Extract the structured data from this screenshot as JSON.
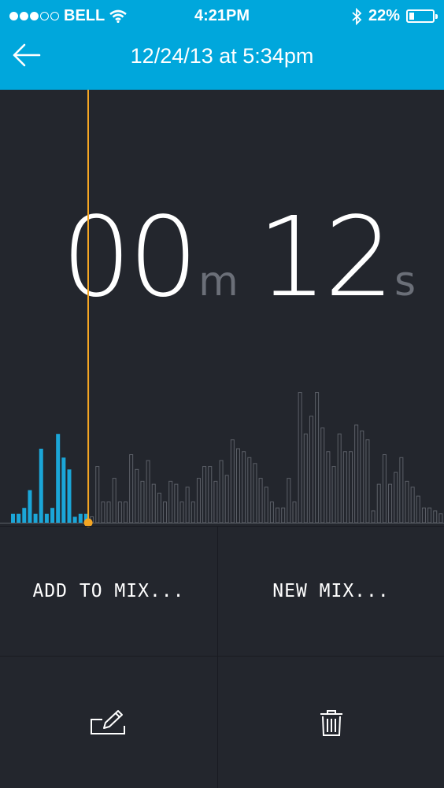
{
  "status_bar": {
    "carrier": "BELL",
    "time": "4:21PM",
    "battery": "22%",
    "battery_level": 0.22,
    "signal_bars_filled": 3,
    "signal_bars_total": 5,
    "icons": [
      "wifi-icon",
      "bluetooth-icon",
      "battery-icon"
    ]
  },
  "header": {
    "title": "12/24/13 at 5:34pm",
    "back_icon": "arrow-left-icon",
    "color": "#00a7dc"
  },
  "timer": {
    "minutes": "00",
    "minutes_unit": "m",
    "seconds": "12",
    "seconds_unit": "s"
  },
  "waveform": {
    "played_color": "#1ba6d8",
    "unplayed_color": "#5c6068",
    "playhead_color": "#f5a623",
    "played_count": 14,
    "levels": [
      0.06,
      0.06,
      0.1,
      0.22,
      0.06,
      0.5,
      0.06,
      0.1,
      0.6,
      0.44,
      0.36,
      0.04,
      0.06,
      0.06,
      0.04,
      0.38,
      0.14,
      0.14,
      0.3,
      0.14,
      0.14,
      0.46,
      0.36,
      0.28,
      0.42,
      0.26,
      0.2,
      0.14,
      0.28,
      0.26,
      0.14,
      0.24,
      0.14,
      0.3,
      0.38,
      0.38,
      0.28,
      0.42,
      0.32,
      0.56,
      0.5,
      0.48,
      0.44,
      0.4,
      0.3,
      0.24,
      0.14,
      0.1,
      0.1,
      0.3,
      0.14,
      0.88,
      0.6,
      0.72,
      0.88,
      0.64,
      0.48,
      0.38,
      0.6,
      0.48,
      0.48,
      0.66,
      0.62,
      0.56,
      0.08,
      0.26,
      0.46,
      0.26,
      0.34,
      0.44,
      0.28,
      0.24,
      0.18,
      0.1,
      0.1,
      0.08,
      0.06
    ],
    "total_bars": 77
  },
  "actions": {
    "add_to_mix": "ADD TO MIX...",
    "new_mix": "NEW MIX...",
    "edit_icon": "edit-icon",
    "delete_icon": "trash-icon"
  }
}
